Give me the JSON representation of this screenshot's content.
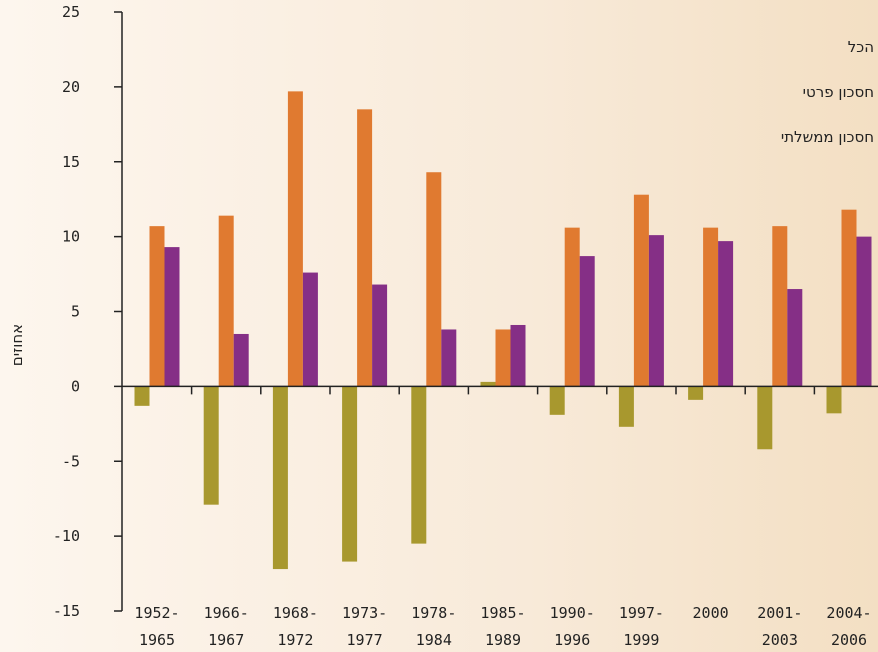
{
  "chart_data": {
    "type": "bar",
    "ylabel": "אחוזים",
    "ylim": [
      -15,
      25
    ],
    "yticks": [
      "25",
      "20",
      "15",
      "10",
      "5",
      "0",
      "-5",
      "-10",
      "-15"
    ],
    "categories": [
      [
        "1952-",
        "1965"
      ],
      [
        "1966-",
        "1967"
      ],
      [
        "1968-",
        "1972"
      ],
      [
        "1973-",
        "1977"
      ],
      [
        "1978-",
        "1984"
      ],
      [
        "1985-",
        "1989"
      ],
      [
        "1990-",
        "1996"
      ],
      [
        "1997-",
        "1999"
      ],
      [
        "2000",
        ""
      ],
      [
        "2001-",
        "2003"
      ],
      [
        "2004-",
        "2006"
      ]
    ],
    "series": [
      {
        "name": "חסכון ממשלתי",
        "color": "#a8982e",
        "values": [
          -1.3,
          -7.9,
          -12.2,
          -11.7,
          -10.5,
          0.3,
          -1.9,
          -2.7,
          -0.9,
          -4.2,
          -1.8
        ]
      },
      {
        "name": "חסכון פרטי",
        "color": "#e07a30",
        "values": [
          10.7,
          11.4,
          19.7,
          18.5,
          14.3,
          3.8,
          10.6,
          12.8,
          10.6,
          10.7,
          11.8
        ]
      },
      {
        "name": "הכל",
        "color": "#852f86",
        "values": [
          9.3,
          3.5,
          7.6,
          6.8,
          3.8,
          4.1,
          8.7,
          10.1,
          9.7,
          6.5,
          10.0
        ]
      }
    ],
    "legend": [
      "הכל",
      "חסכון פרטי",
      "חסכון ממשלתי"
    ],
    "legend_position": "top-right",
    "grid": false
  }
}
